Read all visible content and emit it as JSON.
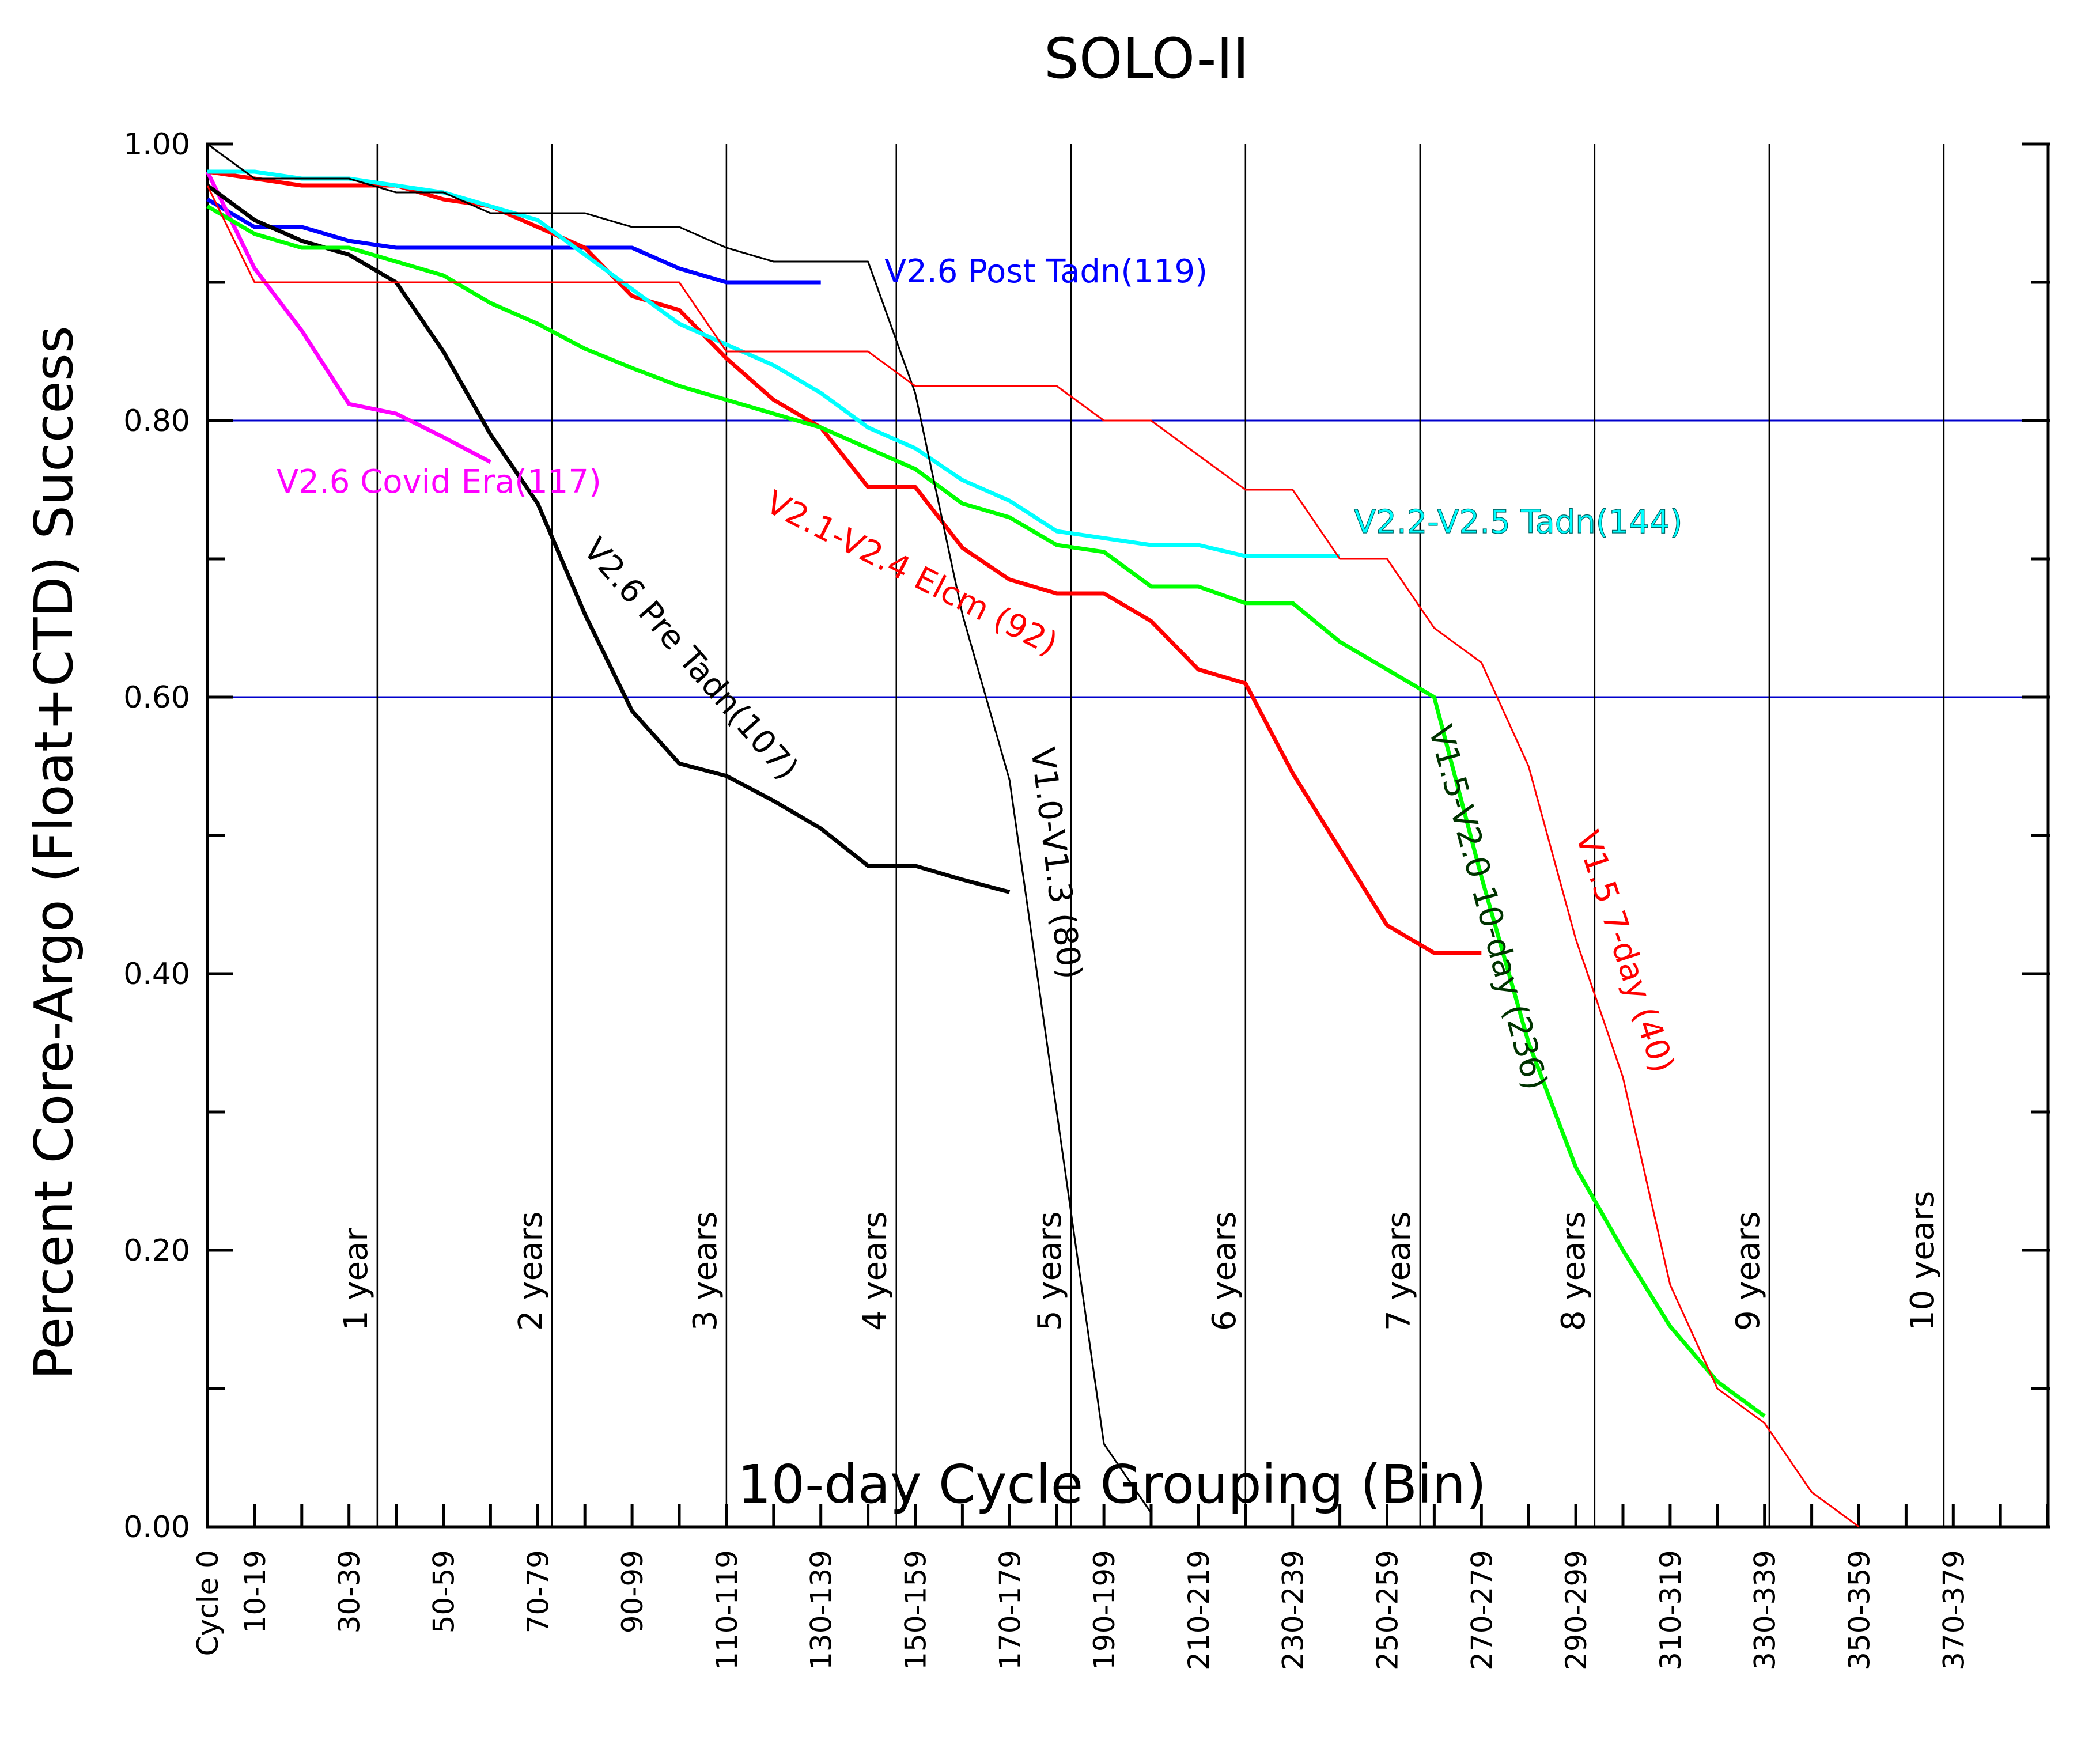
{
  "chart_data": {
    "type": "line",
    "title": "SOLO-II",
    "xlabel": "10-day Cycle Grouping (Bin)",
    "ylabel": "Percent Core-Argo (Float+CTD) Success",
    "ylim": [
      0,
      1
    ],
    "xlim": [
      0,
      39
    ],
    "y_ticks": [
      "0.00",
      "0.20",
      "0.40",
      "0.60",
      "0.80",
      "1.00"
    ],
    "x_tick_labels": [
      "Cycle 0",
      "10-19",
      "30-39",
      "50-59",
      "70-79",
      "90-99",
      "110-119",
      "130-139",
      "150-159",
      "170-179",
      "190-199",
      "210-219",
      "230-239",
      "250-259",
      "270-279",
      "290-299",
      "310-319",
      "330-339",
      "350-359",
      "370-379"
    ],
    "reference_lines_y": [
      0.6,
      0.8
    ],
    "year_markers": [
      {
        "label": "1 year",
        "x": 3.6
      },
      {
        "label": "2 years",
        "x": 7.3
      },
      {
        "label": "3 years",
        "x": 11.0
      },
      {
        "label": "4 years",
        "x": 14.6
      },
      {
        "label": "5 years",
        "x": 18.3
      },
      {
        "label": "6 years",
        "x": 22.0
      },
      {
        "label": "7 years",
        "x": 25.7
      },
      {
        "label": "8 years",
        "x": 29.4
      },
      {
        "label": "9 years",
        "x": 33.1
      },
      {
        "label": "10 years",
        "x": 36.8
      }
    ],
    "series": [
      {
        "name": "V2.6 Post Tadn(119)",
        "color": "#0000ff",
        "stroke_width": 7,
        "points": [
          [
            0,
            0.96
          ],
          [
            1,
            0.94
          ],
          [
            2,
            0.94
          ],
          [
            3,
            0.93
          ],
          [
            4,
            0.925
          ],
          [
            5,
            0.925
          ],
          [
            6,
            0.925
          ],
          [
            7,
            0.925
          ],
          [
            8,
            0.925
          ],
          [
            9,
            0.925
          ],
          [
            10,
            0.91
          ],
          [
            11,
            0.9
          ],
          [
            12,
            0.9
          ],
          [
            13,
            0.9
          ]
        ]
      },
      {
        "name": "V2.6 Covid Era(117)",
        "color": "#ff00ff",
        "stroke_width": 7,
        "points": [
          [
            0,
            0.98
          ],
          [
            1,
            0.91
          ],
          [
            2,
            0.865
          ],
          [
            3,
            0.812
          ],
          [
            4,
            0.805
          ],
          [
            5,
            0.788
          ],
          [
            6,
            0.77
          ]
        ]
      },
      {
        "name": "V2.6 Pre Tadn(107)",
        "color": "#000000",
        "stroke_width": 7,
        "points": [
          [
            0,
            0.97
          ],
          [
            1,
            0.945
          ],
          [
            2,
            0.93
          ],
          [
            3,
            0.92
          ],
          [
            4,
            0.9
          ],
          [
            5,
            0.85
          ],
          [
            6,
            0.79
          ],
          [
            7,
            0.74
          ],
          [
            8,
            0.66
          ],
          [
            9,
            0.59
          ],
          [
            10,
            0.552
          ],
          [
            11,
            0.543
          ],
          [
            12,
            0.525
          ],
          [
            13,
            0.505
          ],
          [
            14,
            0.478
          ],
          [
            15,
            0.478
          ],
          [
            16,
            0.468
          ],
          [
            17,
            0.459
          ]
        ]
      },
      {
        "name": "V2.1-V2.4 Elcm (92)",
        "color": "#ff0000",
        "stroke_width": 7,
        "points": [
          [
            0,
            0.98
          ],
          [
            1,
            0.975
          ],
          [
            2,
            0.97
          ],
          [
            3,
            0.97
          ],
          [
            4,
            0.97
          ],
          [
            5,
            0.96
          ],
          [
            6,
            0.955
          ],
          [
            7,
            0.94
          ],
          [
            8,
            0.925
          ],
          [
            9,
            0.89
          ],
          [
            10,
            0.88
          ],
          [
            11,
            0.845
          ],
          [
            12,
            0.815
          ],
          [
            13,
            0.795
          ],
          [
            14,
            0.752
          ],
          [
            15,
            0.752
          ],
          [
            16,
            0.708
          ],
          [
            17,
            0.685
          ],
          [
            18,
            0.675
          ],
          [
            19,
            0.675
          ],
          [
            20,
            0.655
          ],
          [
            21,
            0.62
          ],
          [
            22,
            0.61
          ],
          [
            23,
            0.545
          ],
          [
            24,
            0.49
          ],
          [
            25,
            0.435
          ],
          [
            26,
            0.415
          ],
          [
            27,
            0.415
          ]
        ]
      },
      {
        "name": "V2.2-V2.5 Tadn(144)",
        "color": "#00ffff",
        "stroke_width": 7,
        "points": [
          [
            0,
            0.98
          ],
          [
            1,
            0.98
          ],
          [
            2,
            0.975
          ],
          [
            3,
            0.975
          ],
          [
            4,
            0.97
          ],
          [
            5,
            0.965
          ],
          [
            6,
            0.955
          ],
          [
            7,
            0.945
          ],
          [
            8,
            0.92
          ],
          [
            9,
            0.895
          ],
          [
            10,
            0.87
          ],
          [
            11,
            0.855
          ],
          [
            12,
            0.84
          ],
          [
            13,
            0.82
          ],
          [
            14,
            0.795
          ],
          [
            15,
            0.78
          ],
          [
            16,
            0.757
          ],
          [
            17,
            0.742
          ],
          [
            18,
            0.72
          ],
          [
            19,
            0.715
          ],
          [
            20,
            0.71
          ],
          [
            21,
            0.71
          ],
          [
            22,
            0.702
          ],
          [
            23,
            0.702
          ],
          [
            24,
            0.702
          ]
        ]
      },
      {
        "name": "V1.5-V2.0 10-day (236)",
        "color": "#00ff00",
        "stroke_width": 7,
        "points": [
          [
            0,
            0.955
          ],
          [
            1,
            0.935
          ],
          [
            2,
            0.925
          ],
          [
            3,
            0.925
          ],
          [
            4,
            0.915
          ],
          [
            5,
            0.905
          ],
          [
            6,
            0.885
          ],
          [
            7,
            0.87
          ],
          [
            8,
            0.852
          ],
          [
            9,
            0.838
          ],
          [
            10,
            0.825
          ],
          [
            11,
            0.815
          ],
          [
            12,
            0.805
          ],
          [
            13,
            0.795
          ],
          [
            14,
            0.78
          ],
          [
            15,
            0.765
          ],
          [
            16,
            0.74
          ],
          [
            17,
            0.73
          ],
          [
            18,
            0.71
          ],
          [
            19,
            0.705
          ],
          [
            20,
            0.68
          ],
          [
            21,
            0.68
          ],
          [
            22,
            0.668
          ],
          [
            23,
            0.668
          ],
          [
            24,
            0.64
          ],
          [
            25,
            0.62
          ],
          [
            26,
            0.6
          ],
          [
            27,
            0.47
          ],
          [
            28,
            0.35
          ],
          [
            29,
            0.26
          ],
          [
            30,
            0.2
          ],
          [
            31,
            0.145
          ],
          [
            32,
            0.105
          ],
          [
            33,
            0.08
          ]
        ]
      },
      {
        "name": "V1.0-V1.3 (80)",
        "color": "#000000",
        "stroke_width": 3,
        "points": [
          [
            0,
            1.0
          ],
          [
            1,
            0.975
          ],
          [
            2,
            0.975
          ],
          [
            3,
            0.975
          ],
          [
            4,
            0.965
          ],
          [
            5,
            0.965
          ],
          [
            6,
            0.95
          ],
          [
            7,
            0.95
          ],
          [
            8,
            0.95
          ],
          [
            9,
            0.94
          ],
          [
            10,
            0.94
          ],
          [
            11,
            0.925
          ],
          [
            12,
            0.915
          ],
          [
            13,
            0.915
          ],
          [
            14,
            0.915
          ],
          [
            15,
            0.82
          ],
          [
            16,
            0.66
          ],
          [
            17,
            0.54
          ],
          [
            18,
            0.3
          ],
          [
            19,
            0.06
          ],
          [
            20,
            0.01
          ]
        ]
      },
      {
        "name": "V1.5 7-day (40)",
        "color": "#ff0000",
        "stroke_width": 3,
        "points": [
          [
            0,
            0.97
          ],
          [
            1,
            0.9
          ],
          [
            2,
            0.9
          ],
          [
            3,
            0.9
          ],
          [
            4,
            0.9
          ],
          [
            5,
            0.9
          ],
          [
            6,
            0.9
          ],
          [
            7,
            0.9
          ],
          [
            8,
            0.9
          ],
          [
            9,
            0.9
          ],
          [
            10,
            0.9
          ],
          [
            11,
            0.85
          ],
          [
            12,
            0.85
          ],
          [
            13,
            0.85
          ],
          [
            14,
            0.85
          ],
          [
            15,
            0.825
          ],
          [
            16,
            0.825
          ],
          [
            17,
            0.825
          ],
          [
            18,
            0.825
          ],
          [
            19,
            0.8
          ],
          [
            20,
            0.8
          ],
          [
            21,
            0.775
          ],
          [
            22,
            0.75
          ],
          [
            23,
            0.75
          ],
          [
            24,
            0.7
          ],
          [
            25,
            0.7
          ],
          [
            26,
            0.65
          ],
          [
            27,
            0.625
          ],
          [
            28,
            0.55
          ],
          [
            29,
            0.425
          ],
          [
            30,
            0.325
          ],
          [
            31,
            0.175
          ],
          [
            32,
            0.1
          ],
          [
            33,
            0.075
          ],
          [
            34,
            0.025
          ],
          [
            35,
            0.0
          ]
        ]
      }
    ]
  }
}
